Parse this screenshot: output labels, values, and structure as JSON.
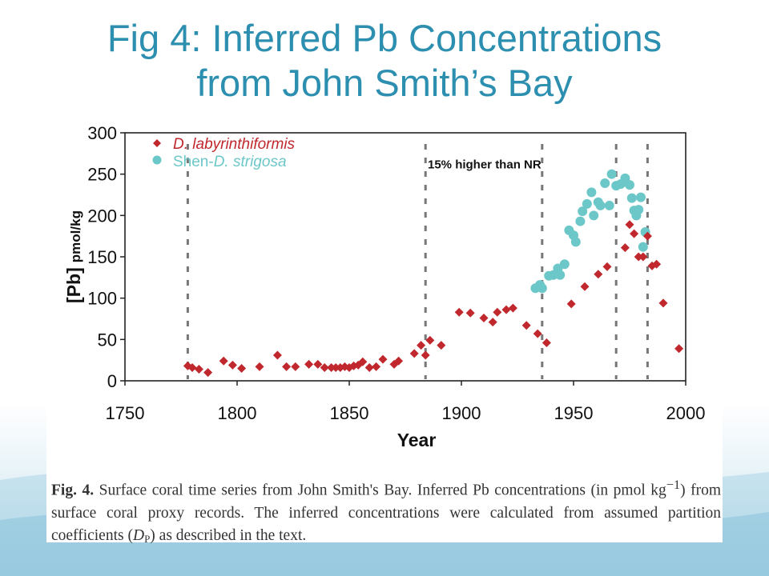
{
  "slide": {
    "title_line1": "Fig 4: Inferred Pb Concentrations",
    "title_line2": "from John Smith’s Bay"
  },
  "caption": {
    "label": "Fig. 4.",
    "text_part1": " Surface coral time series from John Smith's Bay. Inferred Pb concentrations (in pmol kg",
    "superscript": "−1",
    "text_part2": ") from surface coral proxy records. The inferred concentrations were calculated from assumed partition coefficients (",
    "dp_symbol": "D",
    "dp_subscript": "P",
    "text_part3": ") as described in the text."
  },
  "colors": {
    "title": "#2d8fb0",
    "series_1": "#c0282d",
    "series_2": "#6cc7c9",
    "vlines": "#777777"
  },
  "chart_data": {
    "type": "scatter",
    "xlabel": "Year",
    "ylabel_main": "[Pb]",
    "ylabel_unit": "pmol/kg",
    "xlim": [
      1750,
      2000
    ],
    "ylim": [
      0,
      300
    ],
    "xticks": [
      1750,
      1800,
      1850,
      1900,
      1950,
      2000
    ],
    "yticks": [
      0,
      50,
      100,
      150,
      200,
      250,
      300
    ],
    "grid": false,
    "legend_position": "top-left",
    "vertical_dashed_lines_x": [
      1778,
      1884,
      1936,
      1969,
      1983
    ],
    "annotation": {
      "text": "15% higher than NR",
      "x": 1885,
      "y": 257
    },
    "series": [
      {
        "name": "D. labyrinthiformis",
        "marker": "diamond",
        "points": [
          [
            1778,
            18
          ],
          [
            1780,
            16
          ],
          [
            1783,
            14
          ],
          [
            1787,
            10
          ],
          [
            1794,
            24
          ],
          [
            1798,
            19
          ],
          [
            1802,
            15
          ],
          [
            1810,
            17
          ],
          [
            1818,
            31
          ],
          [
            1822,
            17
          ],
          [
            1826,
            17
          ],
          [
            1832,
            20
          ],
          [
            1836,
            20
          ],
          [
            1839,
            16
          ],
          [
            1842,
            16
          ],
          [
            1844,
            16
          ],
          [
            1846,
            16
          ],
          [
            1848,
            17
          ],
          [
            1850,
            16
          ],
          [
            1852,
            18
          ],
          [
            1854,
            19
          ],
          [
            1856,
            23
          ],
          [
            1859,
            16
          ],
          [
            1862,
            17
          ],
          [
            1865,
            26
          ],
          [
            1870,
            20
          ],
          [
            1872,
            24
          ],
          [
            1879,
            33
          ],
          [
            1882,
            43
          ],
          [
            1884,
            31
          ],
          [
            1886,
            49
          ],
          [
            1891,
            43
          ],
          [
            1899,
            83
          ],
          [
            1904,
            82
          ],
          [
            1910,
            76
          ],
          [
            1914,
            71
          ],
          [
            1916,
            83
          ],
          [
            1920,
            86
          ],
          [
            1923,
            88
          ],
          [
            1929,
            67
          ],
          [
            1934,
            57
          ],
          [
            1938,
            46
          ],
          [
            1949,
            93
          ],
          [
            1955,
            114
          ],
          [
            1961,
            129
          ],
          [
            1965,
            138
          ],
          [
            1973,
            161
          ],
          [
            1975,
            189
          ],
          [
            1977,
            178
          ],
          [
            1979,
            150
          ],
          [
            1981,
            150
          ],
          [
            1983,
            175
          ],
          [
            1985,
            139
          ],
          [
            1987,
            141
          ],
          [
            1990,
            94
          ],
          [
            1997,
            39
          ]
        ]
      },
      {
        "name": "D. strigosa",
        "name_prefix": "Shen-",
        "marker": "circle",
        "points": [
          [
            1933,
            112
          ],
          [
            1935,
            116
          ],
          [
            1936,
            112
          ],
          [
            1939,
            127
          ],
          [
            1941,
            128
          ],
          [
            1943,
            136
          ],
          [
            1944,
            128
          ],
          [
            1946,
            141
          ],
          [
            1948,
            182
          ],
          [
            1950,
            176
          ],
          [
            1951,
            168
          ],
          [
            1953,
            193
          ],
          [
            1954,
            205
          ],
          [
            1956,
            214
          ],
          [
            1958,
            228
          ],
          [
            1959,
            200
          ],
          [
            1961,
            216
          ],
          [
            1962,
            212
          ],
          [
            1964,
            239
          ],
          [
            1966,
            212
          ],
          [
            1967,
            250
          ],
          [
            1969,
            236
          ],
          [
            1971,
            238
          ],
          [
            1973,
            245
          ],
          [
            1975,
            237
          ],
          [
            1976,
            221
          ],
          [
            1977,
            206
          ],
          [
            1978,
            200
          ],
          [
            1979,
            207
          ],
          [
            1980,
            222
          ],
          [
            1981,
            162
          ],
          [
            1982,
            180
          ]
        ]
      }
    ]
  }
}
